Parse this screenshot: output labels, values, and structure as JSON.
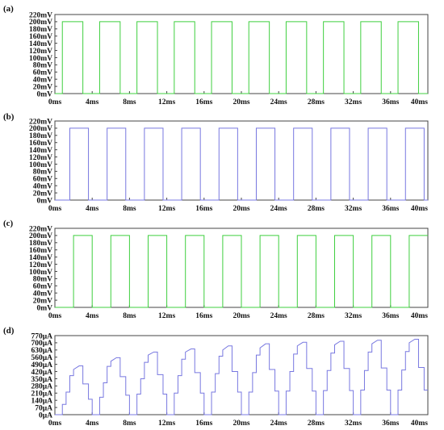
{
  "chart_data": [
    {
      "type": "line",
      "panel_label": "(a)",
      "ylim": [
        0,
        220
      ],
      "yticks": [
        "0mV",
        "20mV",
        "40mV",
        "60mV",
        "80mV",
        "100mV",
        "120mV",
        "140mV",
        "160mV",
        "180mV",
        "200mV",
        "220mV"
      ],
      "xlim": [
        0,
        40
      ],
      "xticks": [
        "0ms",
        "4ms",
        "8ms",
        "12ms",
        "16ms",
        "20ms",
        "24ms",
        "28ms",
        "32ms",
        "36ms",
        "40ms"
      ],
      "grid": false,
      "color": "#3fcf3f",
      "series": [
        {
          "x": [
            0,
            0.8,
            0.8,
            3,
            3,
            4.8,
            4.8,
            7,
            7,
            8.8,
            8.8,
            11,
            11,
            12.8,
            12.8,
            15,
            15,
            16.8,
            16.8,
            19,
            19,
            20.8,
            20.8,
            23,
            23,
            24.8,
            24.8,
            27,
            27,
            28.8,
            28.8,
            31,
            31,
            32.8,
            32.8,
            35,
            35,
            36.8,
            36.8,
            39,
            39,
            40
          ],
          "y": [
            0,
            0,
            200,
            200,
            0,
            0,
            200,
            200,
            0,
            0,
            200,
            200,
            0,
            0,
            200,
            200,
            0,
            0,
            200,
            200,
            0,
            0,
            200,
            200,
            0,
            0,
            200,
            200,
            0,
            0,
            200,
            200,
            0,
            0,
            200,
            200,
            0,
            0,
            200,
            200,
            0,
            0
          ]
        }
      ]
    },
    {
      "type": "line",
      "panel_label": "(b)",
      "ylim": [
        0,
        220
      ],
      "yticks": [
        "0mV",
        "20mV",
        "40mV",
        "60mV",
        "80mV",
        "100mV",
        "120mV",
        "140mV",
        "160mV",
        "180mV",
        "200mV",
        "220mV"
      ],
      "xlim": [
        0,
        40
      ],
      "xticks": [
        "0ms",
        "4ms",
        "8ms",
        "12ms",
        "16ms",
        "20ms",
        "24ms",
        "28ms",
        "32ms",
        "36ms",
        "40ms"
      ],
      "grid": false,
      "color": "#7878e0",
      "series": [
        {
          "x": [
            0,
            1.6,
            1.6,
            3.6,
            3.6,
            5.6,
            5.6,
            7.6,
            7.6,
            9.6,
            9.6,
            11.6,
            11.6,
            13.6,
            13.6,
            15.6,
            15.6,
            17.6,
            17.6,
            19.6,
            19.6,
            21.6,
            21.6,
            23.6,
            23.6,
            25.6,
            25.6,
            27.6,
            27.6,
            29.6,
            29.6,
            31.6,
            31.6,
            33.6,
            33.6,
            35.6,
            35.6,
            37.6,
            37.6,
            39.6,
            39.6,
            40
          ],
          "y": [
            0,
            0,
            200,
            200,
            0,
            0,
            200,
            200,
            0,
            0,
            200,
            200,
            0,
            0,
            200,
            200,
            0,
            0,
            200,
            200,
            0,
            0,
            200,
            200,
            0,
            0,
            200,
            200,
            0,
            0,
            200,
            200,
            0,
            0,
            200,
            200,
            0,
            0,
            200,
            200,
            0,
            0
          ]
        }
      ]
    },
    {
      "type": "line",
      "panel_label": "(c)",
      "ylim": [
        0,
        220
      ],
      "yticks": [
        "0mV",
        "20mV",
        "40mV",
        "60mV",
        "80mV",
        "100mV",
        "120mV",
        "140mV",
        "160mV",
        "180mV",
        "200mV",
        "220mV"
      ],
      "xlim": [
        0,
        40
      ],
      "xticks": [
        "0ms",
        "4ms",
        "8ms",
        "12ms",
        "16ms",
        "20ms",
        "24ms",
        "28ms",
        "32ms",
        "36ms",
        "40ms"
      ],
      "grid": false,
      "color": "#3fcf3f",
      "series": [
        {
          "x": [
            0,
            2,
            2,
            4,
            4,
            6,
            6,
            8,
            8,
            10,
            10,
            12,
            12,
            14,
            14,
            16,
            16,
            18,
            18,
            20,
            20,
            22,
            22,
            24,
            24,
            26,
            26,
            28,
            28,
            30,
            30,
            32,
            32,
            34,
            34,
            36,
            36,
            38,
            38,
            40
          ],
          "y": [
            0,
            0,
            200,
            200,
            0,
            0,
            200,
            200,
            0,
            0,
            200,
            200,
            0,
            0,
            200,
            200,
            0,
            0,
            200,
            200,
            0,
            0,
            200,
            200,
            0,
            0,
            200,
            200,
            0,
            0,
            200,
            200,
            0,
            0,
            200,
            200,
            0,
            0,
            200,
            200
          ]
        }
      ]
    },
    {
      "type": "line",
      "panel_label": "(d)",
      "ylim": [
        0,
        770
      ],
      "yticks": [
        "0μA",
        "70μA",
        "140μA",
        "210μA",
        "280μA",
        "350μA",
        "420μA",
        "490μA",
        "560μA",
        "630μA",
        "700μA",
        "770μA"
      ],
      "xlim": [
        0,
        40
      ],
      "xticks": [
        "0ms",
        "4ms",
        "8ms",
        "12ms",
        "16ms",
        "20ms",
        "24ms",
        "28ms",
        "32ms",
        "36ms",
        "40ms"
      ],
      "grid": false,
      "color": "#7878e0",
      "series": [
        {
          "x": [
            0,
            0.8,
            0.8,
            1.2,
            1.2,
            1.6,
            1.6,
            2,
            2,
            2.6,
            3,
            3,
            3.6,
            3.6,
            4,
            4,
            4.8,
            4.8,
            5.2,
            5.2,
            5.6,
            5.6,
            6,
            6,
            6.6,
            7,
            7,
            7.6,
            7.6,
            8,
            8,
            8.8,
            8.8,
            9.2,
            9.2,
            9.6,
            9.6,
            10,
            10,
            10.6,
            11,
            11,
            11.6,
            11.6,
            12,
            12,
            12.8,
            12.8,
            13.2,
            13.2,
            13.6,
            13.6,
            14,
            14,
            14.6,
            15,
            15,
            15.6,
            15.6,
            16,
            16,
            16.8,
            16.8,
            17.2,
            17.2,
            17.6,
            17.6,
            18,
            18,
            18.6,
            19,
            19,
            19.6,
            19.6,
            20,
            20,
            20.8,
            20.8,
            21.2,
            21.2,
            21.6,
            21.6,
            22,
            22,
            22.6,
            23,
            23,
            23.6,
            23.6,
            24,
            24,
            24.8,
            24.8,
            25.2,
            25.2,
            25.6,
            25.6,
            26,
            26,
            26.6,
            27,
            27,
            27.6,
            27.6,
            28,
            28,
            28.8,
            28.8,
            29.2,
            29.2,
            29.6,
            29.6,
            30,
            30,
            30.6,
            31,
            31,
            31.6,
            31.6,
            32,
            32,
            32.8,
            32.8,
            33.2,
            33.2,
            33.6,
            33.6,
            34,
            34,
            34.6,
            35,
            35,
            35.6,
            35.6,
            36,
            36,
            36.8,
            36.8,
            37.2,
            37.2,
            37.6,
            37.6,
            38,
            38,
            38.6,
            39,
            39,
            39.6,
            39.6,
            40
          ],
          "y": [
            0,
            0,
            100,
            100,
            220,
            220,
            380,
            380,
            440,
            475,
            475,
            300,
            300,
            150,
            150,
            0,
            0,
            170,
            170,
            310,
            310,
            470,
            470,
            520,
            555,
            555,
            370,
            370,
            190,
            190,
            0,
            0,
            200,
            200,
            350,
            350,
            510,
            510,
            580,
            610,
            610,
            390,
            390,
            200,
            200,
            0,
            0,
            210,
            210,
            380,
            380,
            540,
            540,
            610,
            640,
            640,
            410,
            410,
            210,
            210,
            0,
            0,
            220,
            220,
            400,
            400,
            570,
            570,
            630,
            670,
            670,
            420,
            420,
            220,
            220,
            0,
            0,
            220,
            220,
            410,
            410,
            580,
            580,
            650,
            690,
            690,
            440,
            440,
            230,
            230,
            0,
            0,
            230,
            230,
            420,
            420,
            590,
            590,
            670,
            705,
            705,
            450,
            450,
            230,
            230,
            0,
            0,
            235,
            235,
            430,
            430,
            600,
            600,
            680,
            715,
            715,
            450,
            450,
            235,
            235,
            0,
            0,
            240,
            240,
            430,
            430,
            610,
            610,
            690,
            725,
            725,
            455,
            455,
            240,
            240,
            0,
            0,
            240,
            240,
            435,
            435,
            615,
            615,
            700,
            735,
            735,
            460,
            460,
            240,
            240
          ]
        }
      ]
    }
  ]
}
